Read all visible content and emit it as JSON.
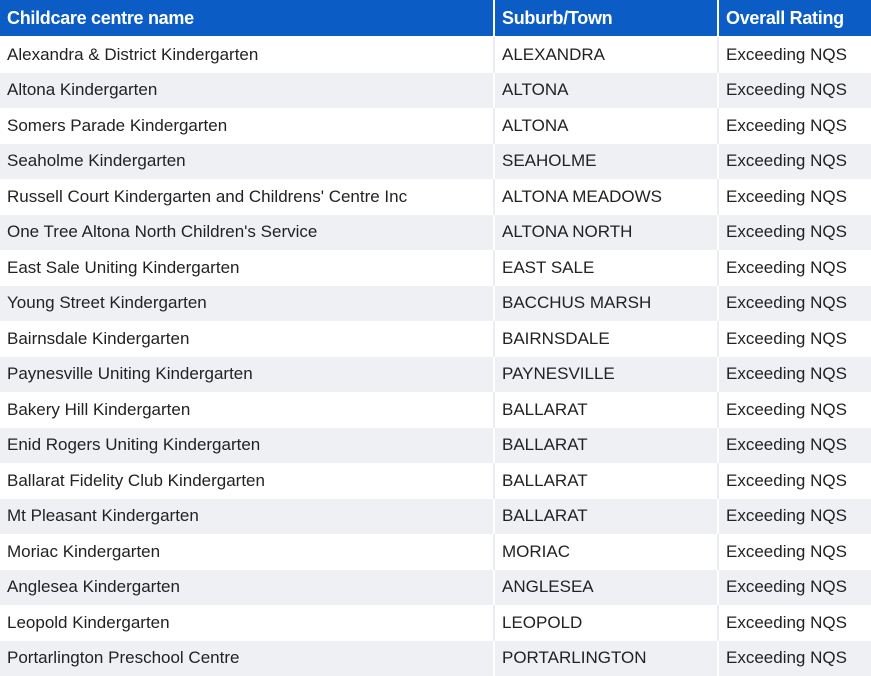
{
  "table": {
    "headers": [
      "Childcare centre name",
      "Suburb/Town",
      "Overall Rating"
    ],
    "rows": [
      [
        "Alexandra & District Kindergarten",
        "ALEXANDRA",
        "Exceeding NQS"
      ],
      [
        "Altona Kindergarten",
        "ALTONA",
        "Exceeding NQS"
      ],
      [
        "Somers Parade Kindergarten",
        "ALTONA",
        "Exceeding NQS"
      ],
      [
        "Seaholme Kindergarten",
        "SEAHOLME",
        "Exceeding NQS"
      ],
      [
        "Russell Court Kindergarten and Childrens' Centre Inc",
        "ALTONA MEADOWS",
        "Exceeding NQS"
      ],
      [
        "One Tree Altona North Children's Service",
        "ALTONA NORTH",
        "Exceeding NQS"
      ],
      [
        "East Sale Uniting Kindergarten",
        "EAST SALE",
        "Exceeding NQS"
      ],
      [
        "Young Street Kindergarten",
        "BACCHUS MARSH",
        "Exceeding NQS"
      ],
      [
        "Bairnsdale Kindergarten",
        "BAIRNSDALE",
        "Exceeding NQS"
      ],
      [
        "Paynesville Uniting Kindergarten",
        "PAYNESVILLE",
        "Exceeding NQS"
      ],
      [
        "Bakery Hill Kindergarten",
        "BALLARAT",
        "Exceeding NQS"
      ],
      [
        "Enid Rogers Uniting Kindergarten",
        "BALLARAT",
        "Exceeding NQS"
      ],
      [
        "Ballarat Fidelity Club Kindergarten",
        "BALLARAT",
        "Exceeding NQS"
      ],
      [
        "Mt Pleasant Kindergarten",
        "BALLARAT",
        "Exceeding NQS"
      ],
      [
        "Moriac Kindergarten",
        "MORIAC",
        "Exceeding NQS"
      ],
      [
        "Anglesea Kindergarten",
        "ANGLESEA",
        "Exceeding NQS"
      ],
      [
        "Leopold Kindergarten",
        "LEOPOLD",
        "Exceeding NQS"
      ],
      [
        "Portarlington Preschool Centre",
        "PORTARLINGTON",
        "Exceeding NQS"
      ]
    ]
  },
  "colors": {
    "header_bg": "#0b5cc4",
    "header_text": "#ffffff",
    "row_alt_bg": "#eef0f3",
    "row_bg": "#ffffff"
  }
}
